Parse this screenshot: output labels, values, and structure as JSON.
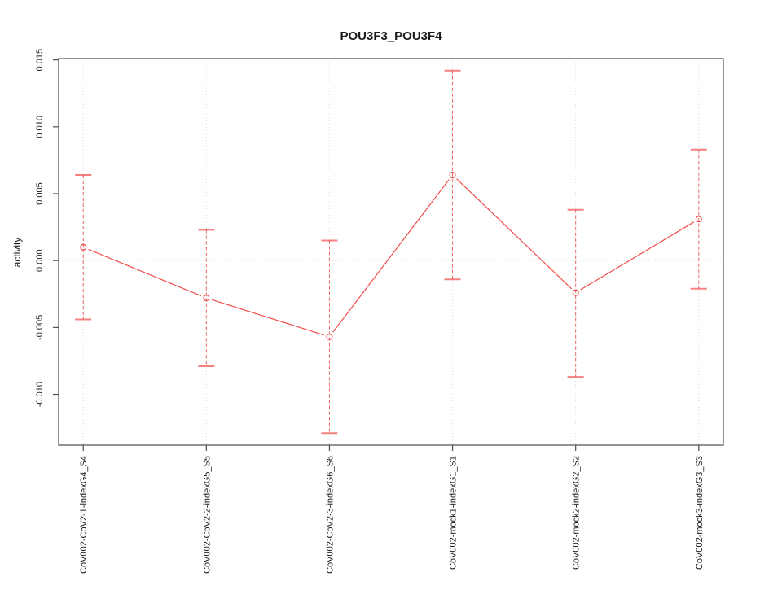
{
  "chart_data": {
    "type": "line",
    "title": "POU3F3_POU3F4",
    "ylabel": "activity",
    "xlabel": "",
    "categories": [
      "CoV002-CoV2-1-indexG4_S4",
      "CoV002-CoV2-2-indexG5_S5",
      "CoV002-CoV2-3-indexG6_S6",
      "CoV002-mock1-indexG1_S1",
      "CoV002-mock2-indexG2_S2",
      "CoV002-mock3-indexG3_S3"
    ],
    "series": [
      {
        "marker": "open-circle",
        "values": [
          0.001,
          -0.0028,
          -0.0057,
          0.0064,
          -0.0024,
          0.0031
        ],
        "error_high": [
          0.0064,
          0.0023,
          0.0015,
          0.0142,
          0.0038,
          0.0083
        ],
        "error_low": [
          -0.0044,
          -0.0079,
          -0.0129,
          -0.0014,
          -0.0087,
          -0.0021
        ]
      }
    ],
    "yticks": [
      {
        "label": "-0.010",
        "value": -0.01
      },
      {
        "label": "-0.005",
        "value": -0.005
      },
      {
        "label": "0.000",
        "value": 0.0
      },
      {
        "label": "0.005",
        "value": 0.005
      },
      {
        "label": "0.010",
        "value": 0.01
      },
      {
        "label": "0.015",
        "value": 0.015
      }
    ],
    "ylim": [
      -0.0138,
      0.0151
    ],
    "grid": "dotted vertical gridline at each category; dotted horizontal line at y=0",
    "legend": "none",
    "colors": {
      "series": "#f24b4b",
      "grid": "#d9d9d9",
      "axis": "#4d4d4d",
      "text": "#1a1a1a",
      "background": "#ffffff"
    }
  }
}
